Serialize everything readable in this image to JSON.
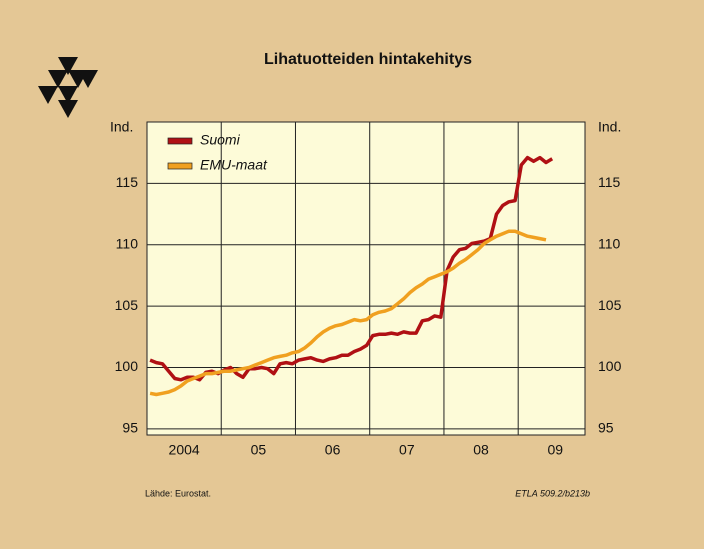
{
  "chart_data": {
    "type": "line",
    "title": "Lihatuotteiden hintakehitys",
    "ylabel": "Ind.",
    "source": "Lähde:  Eurostat.",
    "code": "ETLA 509.2/b213b",
    "xlim": [
      2004,
      2009.9
    ],
    "xticks": [
      {
        "value": 2004.5,
        "label": "2004"
      },
      {
        "value": 2005.5,
        "label": "05"
      },
      {
        "value": 2006.5,
        "label": "06"
      },
      {
        "value": 2007.5,
        "label": "07"
      },
      {
        "value": 2008.5,
        "label": "08"
      },
      {
        "value": 2009.5,
        "label": "09"
      }
    ],
    "xgrid": [
      2005,
      2006,
      2007,
      2008,
      2009
    ],
    "ylim": [
      94.5,
      120
    ],
    "yticks": [
      95,
      100,
      105,
      110,
      115
    ],
    "grid": true,
    "legend": "upper left",
    "x": [
      2004.042,
      2004.125,
      2004.208,
      2004.292,
      2004.375,
      2004.458,
      2004.542,
      2004.625,
      2004.708,
      2004.792,
      2004.875,
      2004.958,
      2005.042,
      2005.125,
      2005.208,
      2005.292,
      2005.375,
      2005.458,
      2005.542,
      2005.625,
      2005.708,
      2005.792,
      2005.875,
      2005.958,
      2006.042,
      2006.125,
      2006.208,
      2006.292,
      2006.375,
      2006.458,
      2006.542,
      2006.625,
      2006.708,
      2006.792,
      2006.875,
      2006.958,
      2007.042,
      2007.125,
      2007.208,
      2007.292,
      2007.375,
      2007.458,
      2007.542,
      2007.625,
      2007.708,
      2007.792,
      2007.875,
      2007.958,
      2008.042,
      2008.125,
      2008.208,
      2008.292,
      2008.375,
      2008.458,
      2008.542,
      2008.625,
      2008.708,
      2008.792,
      2008.875,
      2008.958,
      2009.042,
      2009.125,
      2009.208,
      2009.292,
      2009.375,
      2009.458
    ],
    "series": [
      {
        "name": "Suomi",
        "color": "#b01014",
        "values": [
          100.6,
          100.4,
          100.3,
          99.7,
          99.1,
          99.0,
          99.2,
          99.2,
          99.0,
          99.6,
          99.7,
          99.5,
          99.8,
          100.0,
          99.5,
          99.2,
          99.9,
          99.9,
          100.0,
          99.9,
          99.5,
          100.3,
          100.4,
          100.3,
          100.6,
          100.7,
          100.8,
          100.6,
          100.5,
          100.7,
          100.8,
          101.0,
          101.0,
          101.3,
          101.5,
          101.8,
          102.6,
          102.7,
          102.7,
          102.8,
          102.7,
          102.9,
          102.8,
          102.8,
          103.8,
          103.9,
          104.2,
          104.1,
          107.9,
          109.0,
          109.6,
          109.7,
          110.1,
          110.2,
          110.3,
          110.5,
          112.5,
          113.2,
          113.5,
          113.6,
          116.5,
          117.1,
          116.8,
          117.1,
          116.7,
          117.0
        ]
      },
      {
        "name": "EMU-maat",
        "color": "#f0a020",
        "values": [
          97.9,
          97.8,
          97.9,
          98.0,
          98.2,
          98.5,
          98.9,
          99.1,
          99.3,
          99.5,
          99.5,
          99.6,
          99.7,
          99.7,
          99.8,
          99.9,
          100.0,
          100.2,
          100.4,
          100.6,
          100.8,
          100.9,
          101.0,
          101.2,
          101.3,
          101.6,
          102.0,
          102.5,
          102.9,
          103.2,
          103.4,
          103.5,
          103.7,
          103.9,
          103.8,
          103.9,
          104.3,
          104.5,
          104.6,
          104.8,
          105.2,
          105.6,
          106.1,
          106.5,
          106.8,
          107.2,
          107.4,
          107.6,
          107.8,
          108.1,
          108.5,
          108.8,
          109.2,
          109.6,
          110.1,
          110.4,
          110.7,
          110.9,
          111.1,
          111.1,
          110.9,
          110.7,
          110.6,
          110.5,
          110.4,
          null
        ]
      }
    ]
  }
}
